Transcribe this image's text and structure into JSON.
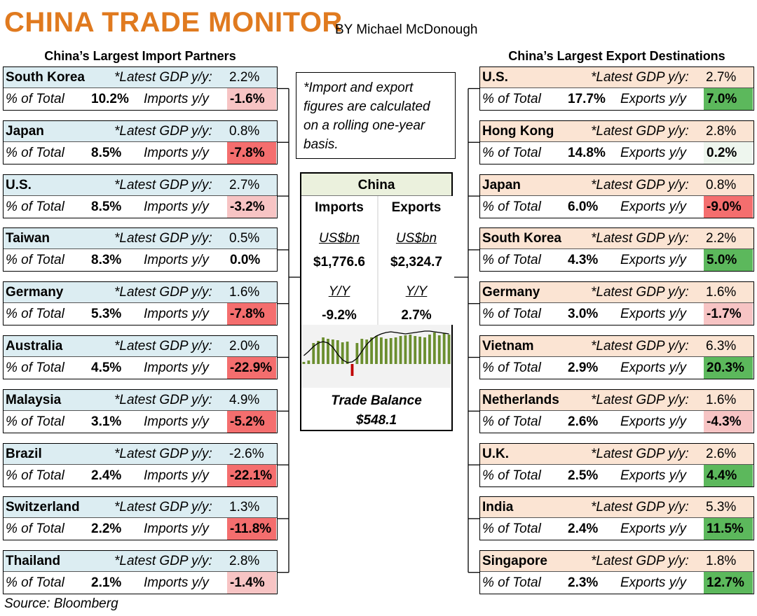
{
  "header": {
    "title": "CHINA TRADE MONITOR",
    "byline": "BY Michael McDonough",
    "import_heading": "China’s Largest Import Partners",
    "export_heading": "China’s Largest Export Destinations",
    "source": "Source: Bloomberg"
  },
  "labels": {
    "gdp": "*Latest GDP y/y:",
    "pct_total": "% of Total",
    "imports_yy": "Imports y/y",
    "exports_yy": "Exports y/y"
  },
  "note": {
    "text": "*Import and export figures are calculated on a rolling one-year basis."
  },
  "colors": {
    "title": "#e07a1f",
    "import_header_bg": "#dcedf2",
    "export_header_bg": "#fbe4d3",
    "center_header_bg": "#ebf1dd",
    "neg_strong": "#f46e6e",
    "neg_light": "#f7c4c4",
    "pos_strong": "#5cb85c",
    "pos_light": "#eef6ee",
    "bar_pos": "#6b8e2f",
    "bar_neg": "#c00000"
  },
  "center": {
    "title": "China",
    "imports_head": "Imports",
    "exports_head": "Exports",
    "unit": "US$bn",
    "imports_value": "$1,776.6",
    "exports_value": "$2,324.7",
    "yy_label": "Y/Y",
    "imports_yy": "-9.2%",
    "exports_yy": "2.7%",
    "trade_balance_label": "Trade Balance",
    "trade_balance_value": "$548.1"
  },
  "imports": [
    {
      "country": "South Korea",
      "gdp": "2.2%",
      "pct": "10.2%",
      "yy": "-1.6%",
      "yy_num": -1.6
    },
    {
      "country": "Japan",
      "gdp": "0.8%",
      "pct": "8.5%",
      "yy": "-7.8%",
      "yy_num": -7.8
    },
    {
      "country": "U.S.",
      "gdp": "2.7%",
      "pct": "8.5%",
      "yy": "-3.2%",
      "yy_num": -3.2
    },
    {
      "country": "Taiwan",
      "gdp": "0.5%",
      "pct": "8.3%",
      "yy": "0.0%",
      "yy_num": 0.0
    },
    {
      "country": "Germany",
      "gdp": "1.6%",
      "pct": "5.3%",
      "yy": "-7.8%",
      "yy_num": -7.8
    },
    {
      "country": "Australia",
      "gdp": "2.0%",
      "pct": "4.5%",
      "yy": "-22.9%",
      "yy_num": -22.9
    },
    {
      "country": "Malaysia",
      "gdp": "4.9%",
      "pct": "3.1%",
      "yy": "-5.2%",
      "yy_num": -5.2
    },
    {
      "country": "Brazil",
      "gdp": "-2.6%",
      "pct": "2.4%",
      "yy": "-22.1%",
      "yy_num": -22.1
    },
    {
      "country": "Switzerland",
      "gdp": "1.3%",
      "pct": "2.2%",
      "yy": "-11.8%",
      "yy_num": -11.8
    },
    {
      "country": "Thailand",
      "gdp": "2.8%",
      "pct": "2.1%",
      "yy": "-1.4%",
      "yy_num": -1.4
    }
  ],
  "exports": [
    {
      "country": "U.S.",
      "gdp": "2.7%",
      "pct": "17.7%",
      "yy": "7.0%",
      "yy_num": 7.0
    },
    {
      "country": "Hong Kong",
      "gdp": "2.8%",
      "pct": "14.8%",
      "yy": "0.2%",
      "yy_num": 0.2
    },
    {
      "country": "Japan",
      "gdp": "0.8%",
      "pct": "6.0%",
      "yy": "-9.0%",
      "yy_num": -9.0
    },
    {
      "country": "South Korea",
      "gdp": "2.2%",
      "pct": "4.3%",
      "yy": "5.0%",
      "yy_num": 5.0
    },
    {
      "country": "Germany",
      "gdp": "1.6%",
      "pct": "3.0%",
      "yy": "-1.7%",
      "yy_num": -1.7
    },
    {
      "country": "Vietnam",
      "gdp": "6.3%",
      "pct": "2.9%",
      "yy": "20.3%",
      "yy_num": 20.3
    },
    {
      "country": "Netherlands",
      "gdp": "1.6%",
      "pct": "2.6%",
      "yy": "-4.3%",
      "yy_num": -4.3
    },
    {
      "country": "U.K.",
      "gdp": "2.6%",
      "pct": "2.5%",
      "yy": "4.4%",
      "yy_num": 4.4
    },
    {
      "country": "India",
      "gdp": "5.3%",
      "pct": "2.4%",
      "yy": "11.5%",
      "yy_num": 11.5
    },
    {
      "country": "Singapore",
      "gdp": "1.8%",
      "pct": "2.3%",
      "yy": "12.7%",
      "yy_num": 12.7
    }
  ],
  "chart_data": {
    "type": "bar",
    "title": "",
    "xlabel": "",
    "ylabel": "",
    "series": [
      {
        "values": [
          3,
          5,
          30,
          33,
          38,
          36,
          35,
          34,
          31,
          32,
          -17,
          30,
          36,
          35,
          38,
          40,
          38,
          36,
          37,
          38,
          40,
          41,
          42,
          40,
          39,
          38,
          42,
          45,
          41,
          44,
          42
        ]
      },
      {
        "values": [
          12,
          18,
          25,
          30,
          32,
          30,
          24,
          14,
          6,
          2,
          3,
          8,
          18,
          28,
          35,
          40,
          43,
          45,
          46,
          45,
          44,
          43,
          44,
          45,
          46,
          47,
          47,
          46,
          45,
          44,
          43
        ]
      }
    ],
    "ylim": [
      -25,
      50
    ],
    "grid": false,
    "legend": "none"
  }
}
